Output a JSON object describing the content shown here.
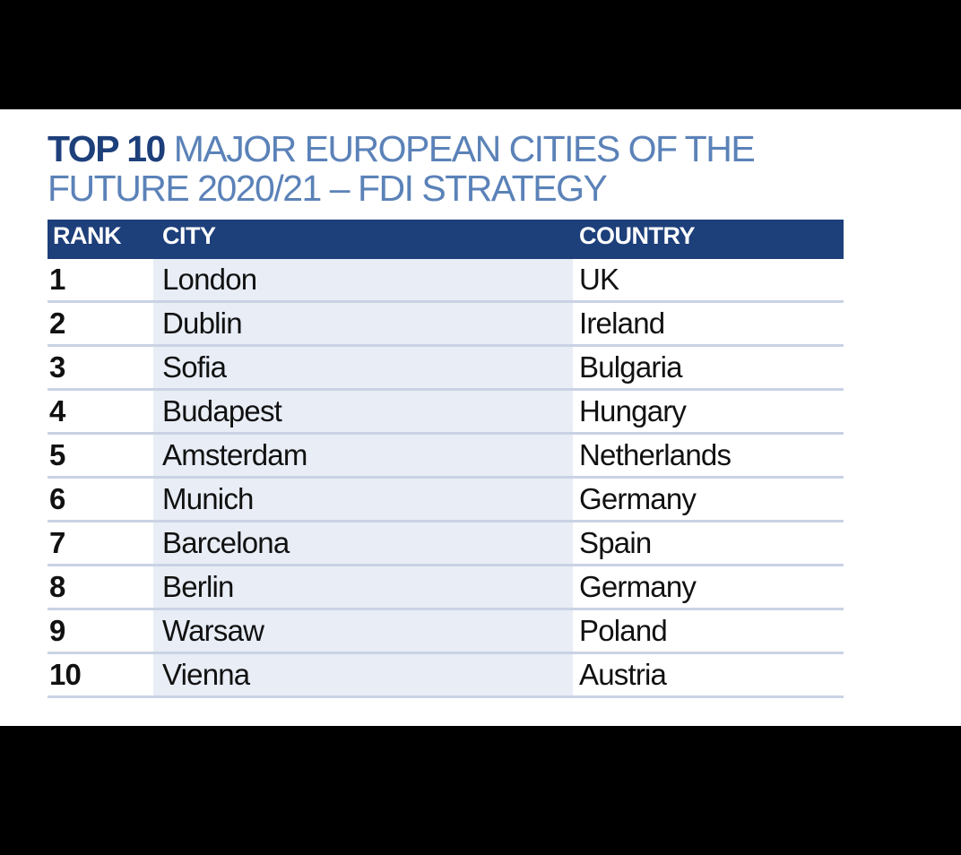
{
  "title": {
    "bold": "TOP 10",
    "rest_line1": " MAJOR EUROPEAN CITIES OF THE",
    "line2": "FUTURE 2020/21 – FDI STRATEGY"
  },
  "table": {
    "headers": {
      "rank": "RANK",
      "city": "CITY",
      "country": "COUNTRY"
    },
    "rows": [
      {
        "rank": "1",
        "city": "London",
        "country": "UK"
      },
      {
        "rank": "2",
        "city": "Dublin",
        "country": "Ireland"
      },
      {
        "rank": "3",
        "city": "Sofia",
        "country": "Bulgaria"
      },
      {
        "rank": "4",
        "city": "Budapest",
        "country": "Hungary"
      },
      {
        "rank": "5",
        "city": "Amsterdam",
        "country": "Netherlands"
      },
      {
        "rank": "6",
        "city": "Munich",
        "country": "Germany"
      },
      {
        "rank": "7",
        "city": "Barcelona",
        "country": "Spain"
      },
      {
        "rank": "8",
        "city": "Berlin",
        "country": "Germany"
      },
      {
        "rank": "9",
        "city": "Warsaw",
        "country": "Poland"
      },
      {
        "rank": "10",
        "city": "Vienna",
        "country": "Austria"
      }
    ]
  },
  "colors": {
    "header_bg": "#1d3f7a",
    "title_light": "#5b82b8",
    "city_column_bg": "#e8edf6",
    "row_divider": "#c9d3e4"
  }
}
